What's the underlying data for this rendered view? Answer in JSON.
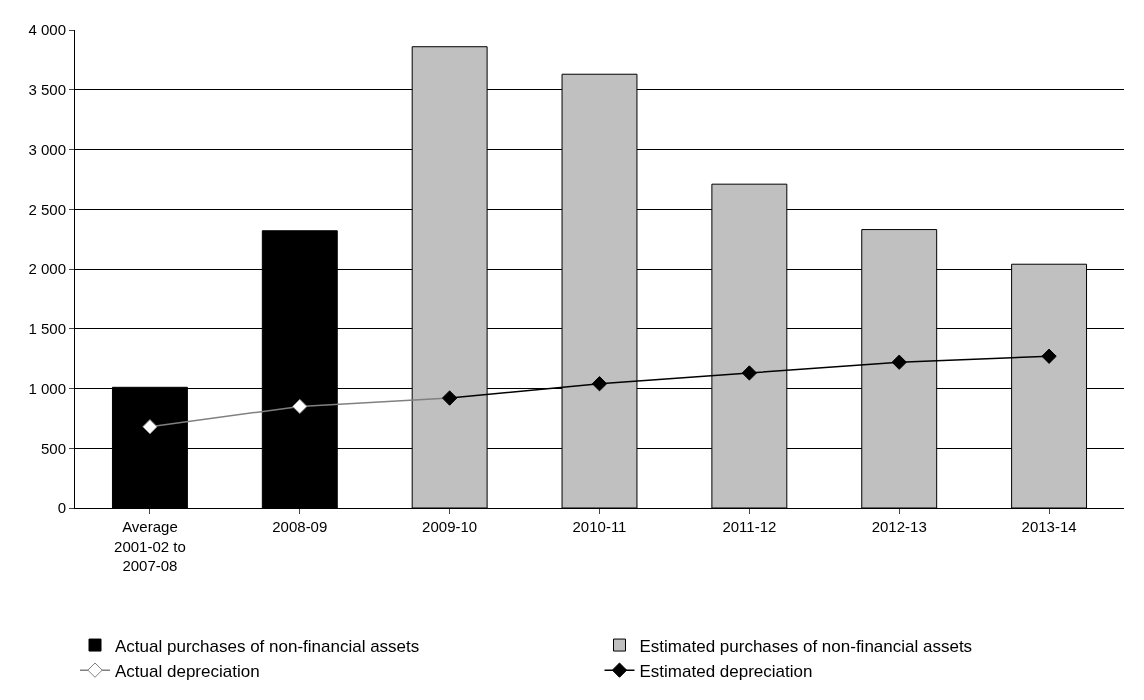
{
  "chart_data": {
    "type": "bar",
    "categories": [
      "Average\n2001-02 to\n2007-08",
      "2008-09",
      "2009-10",
      "2010-11",
      "2011-12",
      "2012-13",
      "2013-14"
    ],
    "series": [
      {
        "name": "Actual purchases of non-financial assets",
        "color": "#000000",
        "values": [
          1010,
          2320,
          null,
          null,
          null,
          null,
          null
        ]
      },
      {
        "name": "Estimated purchases of non-financial assets",
        "color": "#c0c0c0",
        "values": [
          null,
          null,
          3860,
          3630,
          2710,
          2330,
          2040
        ]
      },
      {
        "name": "Actual depreciation",
        "type": "line",
        "color": "#808080",
        "marker": "diamond",
        "values": [
          680,
          850,
          920,
          null,
          null,
          null,
          null
        ]
      },
      {
        "name": "Estimated depreciation",
        "type": "line",
        "color": "#000000",
        "marker": "diamond",
        "values": [
          null,
          null,
          920,
          1040,
          1130,
          1220,
          1270
        ]
      }
    ],
    "ylim": [
      0,
      4000
    ],
    "yticks": [
      0,
      500,
      {
        "value": 1000,
        "label": "1 000"
      },
      {
        "value": 1500,
        "label": "1 500"
      },
      {
        "value": 2000,
        "label": "2 000"
      },
      {
        "value": 2500,
        "label": "2 500"
      },
      {
        "value": 3000,
        "label": "3 000"
      },
      {
        "value": 3500,
        "label": "3 500"
      },
      {
        "value": 4000,
        "label": "4 000"
      }
    ],
    "grid": "y",
    "legend": "bottom",
    "line_style": "solid"
  }
}
